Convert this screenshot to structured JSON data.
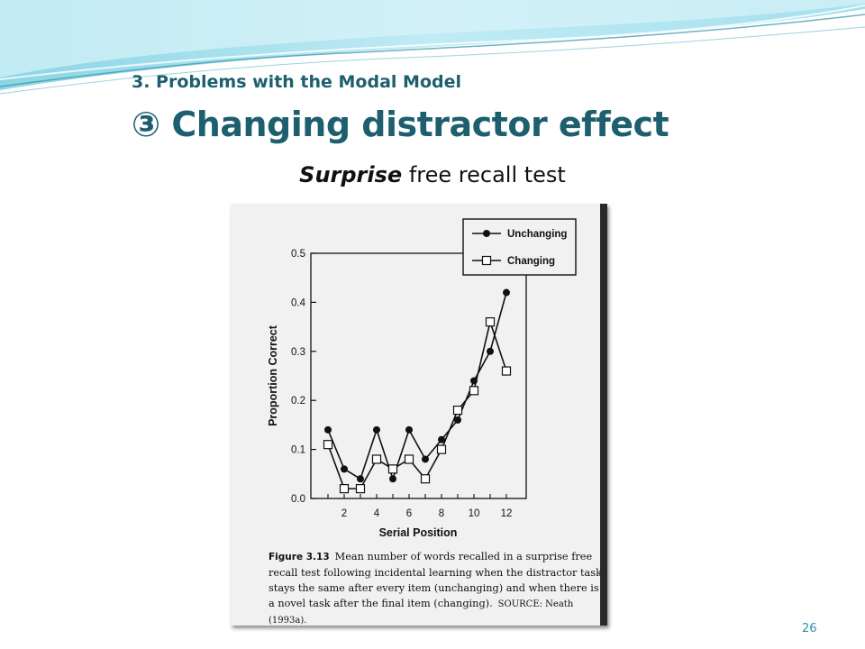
{
  "slide": {
    "subtitle": "3. Problems with the Modal Model",
    "title": "③ Changing distractor effect",
    "caption_emph": "Surprise",
    "caption_rest": " free recall test",
    "page_number": "26",
    "accent_color": "#1d5f6e",
    "page_number_color": "#2e93a8"
  },
  "figure": {
    "label": "Figure 3.13",
    "caption": "Mean number of words recalled in a surprise free recall test following incidental learning when the distractor task stays the same after every item (unchanging) and when there is a novel task after the final item (changing).",
    "source": "SOURCE: Neath (1993a)."
  },
  "chart_data": {
    "type": "line",
    "xlabel": "Serial Position",
    "ylabel": "Proportion Correct",
    "xlim": [
      1,
      12
    ],
    "ylim": [
      0.0,
      0.5
    ],
    "x_ticks": [
      2,
      4,
      6,
      8,
      10,
      12
    ],
    "y_ticks": [
      "0.0",
      "0.1",
      "0.2",
      "0.3",
      "0.4",
      "0.5"
    ],
    "grid": false,
    "legend_position": "top-right",
    "x": [
      1,
      2,
      3,
      4,
      5,
      6,
      7,
      8,
      9,
      10,
      11,
      12
    ],
    "series": [
      {
        "name": "Unchanging",
        "marker": "filled-circle",
        "color": "#111111",
        "values": [
          0.14,
          0.06,
          0.04,
          0.14,
          0.04,
          0.14,
          0.08,
          0.12,
          0.16,
          0.24,
          0.3,
          0.42
        ]
      },
      {
        "name": "Changing",
        "marker": "open-square",
        "color": "#111111",
        "values": [
          0.11,
          0.02,
          0.02,
          0.08,
          0.06,
          0.08,
          0.04,
          0.1,
          0.18,
          0.22,
          0.36,
          0.26
        ]
      }
    ]
  }
}
